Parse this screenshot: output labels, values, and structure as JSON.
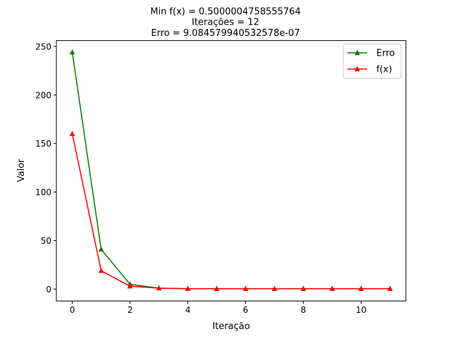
{
  "chart_data": {
    "type": "line",
    "title_lines": [
      "Min f(x) = 0.5000004758555764",
      "Iterações = 12",
      "Erro = 9.084579940532578e-07"
    ],
    "xlabel": "Iteração",
    "ylabel": "Valor",
    "xlim": [
      -0.55,
      11.55
    ],
    "ylim": [
      -12.2,
      256.0
    ],
    "xticks": [
      0,
      2,
      4,
      6,
      8,
      10
    ],
    "yticks": [
      0,
      50,
      100,
      150,
      200,
      250
    ],
    "grid": false,
    "legend_position": "upper-right",
    "x": [
      0,
      1,
      2,
      3,
      4,
      5,
      6,
      7,
      8,
      9,
      10,
      11
    ],
    "series": [
      {
        "name": "Erro",
        "color": "#008000",
        "marker": "triangle-up",
        "values": [
          244,
          41,
          5,
          1,
          0.5,
          0.5,
          0.5,
          0.5,
          0.5,
          0.5,
          0.5,
          0.5
        ]
      },
      {
        "name": "f(x)",
        "color": "#ff0000",
        "marker": "triangle-up",
        "values": [
          160,
          19,
          3,
          1,
          0.5,
          0.5,
          0.5,
          0.5,
          0.5,
          0.5,
          0.5,
          0.5
        ]
      }
    ]
  }
}
